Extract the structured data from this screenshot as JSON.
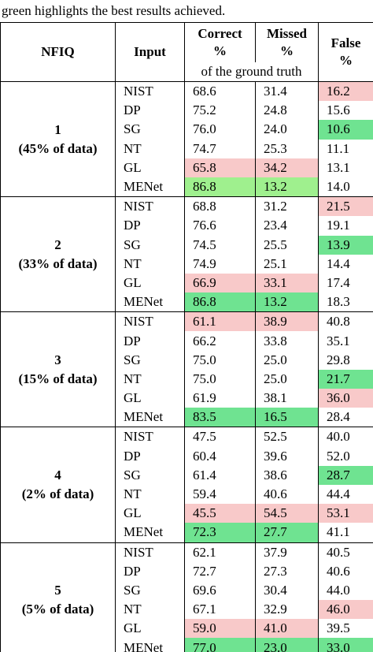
{
  "caption": "green highlights the best results achieved.",
  "header": {
    "nfiq": "NFIQ",
    "input": "Input",
    "correct": "Correct",
    "missed": "Missed",
    "false": "False",
    "percent": "%",
    "ground_truth": "of the ground truth"
  },
  "groups": [
    {
      "label": "1",
      "share": "(45% of data)",
      "rows": [
        [
          "NIST",
          "68.6",
          "31.4",
          "16.2"
        ],
        [
          "DP",
          "75.2",
          "24.8",
          "15.6"
        ],
        [
          "SG",
          "76.0",
          "24.0",
          "10.6"
        ],
        [
          "NT",
          "74.7",
          "25.3",
          "11.1"
        ],
        [
          "GL",
          "65.8",
          "34.2",
          "13.1"
        ],
        [
          "MENet",
          "86.8",
          "13.2",
          "14.0"
        ]
      ]
    },
    {
      "label": "2",
      "share": "(33% of data)",
      "rows": [
        [
          "NIST",
          "68.8",
          "31.2",
          "21.5"
        ],
        [
          "DP",
          "76.6",
          "23.4",
          "19.1"
        ],
        [
          "SG",
          "74.5",
          "25.5",
          "13.9"
        ],
        [
          "NT",
          "74.9",
          "25.1",
          "14.4"
        ],
        [
          "GL",
          "66.9",
          "33.1",
          "17.4"
        ],
        [
          "MENet",
          "86.8",
          "13.2",
          "18.3"
        ]
      ]
    },
    {
      "label": "3",
      "share": "(15% of data)",
      "rows": [
        [
          "NIST",
          "61.1",
          "38.9",
          "40.8"
        ],
        [
          "DP",
          "66.2",
          "33.8",
          "35.1"
        ],
        [
          "SG",
          "75.0",
          "25.0",
          "29.8"
        ],
        [
          "NT",
          "75.0",
          "25.0",
          "21.7"
        ],
        [
          "GL",
          "61.9",
          "38.1",
          "36.0"
        ],
        [
          "MENet",
          "83.5",
          "16.5",
          "28.4"
        ]
      ]
    },
    {
      "label": "4",
      "share": "(2% of data)",
      "rows": [
        [
          "NIST",
          "47.5",
          "52.5",
          "40.0"
        ],
        [
          "DP",
          "60.4",
          "39.6",
          "52.0"
        ],
        [
          "SG",
          "61.4",
          "38.6",
          "28.7"
        ],
        [
          "NT",
          "59.4",
          "40.6",
          "44.4"
        ],
        [
          "GL",
          "45.5",
          "54.5",
          "53.1"
        ],
        [
          "MENet",
          "72.3",
          "27.7",
          "41.1"
        ]
      ]
    },
    {
      "label": "5",
      "share": "(5% of data)",
      "rows": [
        [
          "NIST",
          "62.1",
          "37.9",
          "40.5"
        ],
        [
          "DP",
          "72.7",
          "27.3",
          "40.6"
        ],
        [
          "SG",
          "69.6",
          "30.4",
          "44.0"
        ],
        [
          "NT",
          "67.1",
          "32.9",
          "46.0"
        ],
        [
          "GL",
          "59.0",
          "41.0",
          "39.5"
        ],
        [
          "MENet",
          "77.0",
          "23.0",
          "33.0"
        ]
      ]
    }
  ]
}
